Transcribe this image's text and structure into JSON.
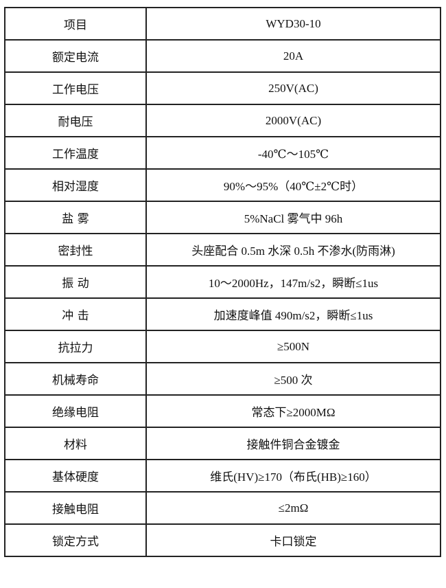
{
  "rows": [
    {
      "label": "项目",
      "value": "WYD30-10"
    },
    {
      "label": "额定电流",
      "value": "20A"
    },
    {
      "label": "工作电压",
      "value": "250V(AC)"
    },
    {
      "label": "耐电压",
      "value": "2000V(AC)"
    },
    {
      "label": "工作温度",
      "value": "-40℃～105℃"
    },
    {
      "label": "相对湿度",
      "value": "90%～95%（40℃±2℃时）"
    },
    {
      "label": "盐 雾",
      "value": "5%NaCl 雾气中 96h"
    },
    {
      "label": "密封性",
      "value": "头座配合 0.5m 水深 0.5h 不渗水(防雨淋)"
    },
    {
      "label": "振 动",
      "value": "10～2000Hz，147m/s2，瞬断≤1us"
    },
    {
      "label": "冲 击",
      "value": "加速度峰值 490m/s2，瞬断≤1us"
    },
    {
      "label": "抗拉力",
      "value": "≥500N"
    },
    {
      "label": "机械寿命",
      "value": "≥500 次"
    },
    {
      "label": "绝缘电阻",
      "value": "常态下≥2000MΩ"
    },
    {
      "label": "材料",
      "value": "接触件铜合金镀金"
    },
    {
      "label": "基体硬度",
      "value": "维氏(HV)≥170（布氏(HB)≥160）"
    },
    {
      "label": "接触电阻",
      "value": "≤2mΩ"
    },
    {
      "label": "锁定方式",
      "value": "卡口锁定"
    }
  ]
}
